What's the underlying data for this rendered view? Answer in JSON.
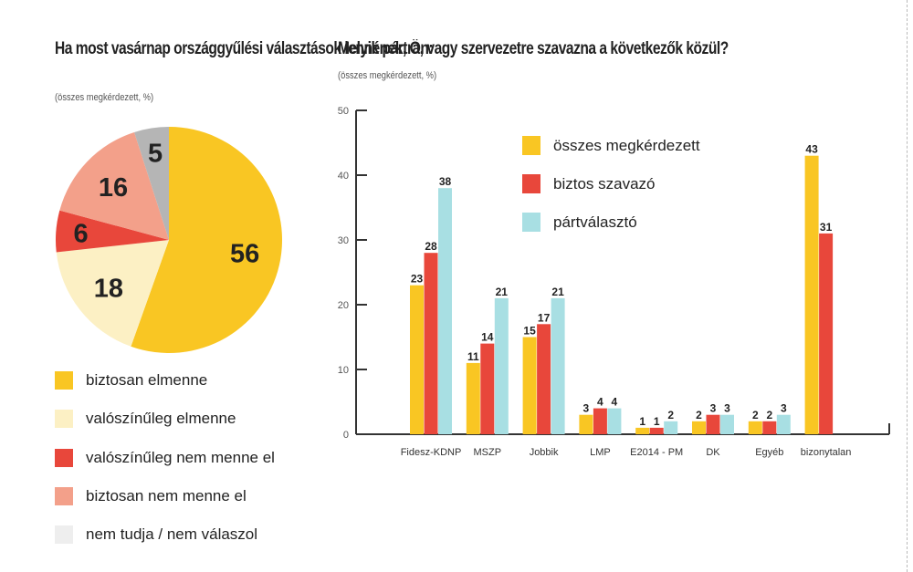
{
  "chart_data": [
    {
      "type": "pie",
      "title": "Ha most vasárnap országgyűlési választások lennének, Ön:",
      "subtitle": "(összes megkérdezett, %)",
      "labels": [
        "biztosan elmenne",
        "valószínűleg elmenne",
        "valószínűleg nem menne el",
        "biztosan nem menne el",
        "nem tudja / nem válaszol"
      ],
      "values": [
        56,
        18,
        6,
        16,
        5
      ],
      "colors": [
        "#f9c623",
        "#fcf0c4",
        "#e8473b",
        "#f3a08a",
        "#b5b5b5"
      ],
      "legend_colors": [
        "#f9c623",
        "#fcf0c4",
        "#e8473b",
        "#f3a08a",
        "#eeeeee"
      ]
    },
    {
      "type": "bar",
      "title": "Melyik pártra, vagy szervezetre szavazna a következők közül?",
      "subtitle": "(összes megkérdezett, %)",
      "categories": [
        "Fidesz-KDNP",
        "MSZP",
        "Jobbik",
        "LMP",
        "E2014 - PM",
        "DK",
        "Egyéb",
        "bizonytalan"
      ],
      "series": [
        {
          "name": "összes megkérdezett",
          "color": "#f9c623",
          "values": [
            23,
            11,
            15,
            3,
            1,
            2,
            2,
            43
          ]
        },
        {
          "name": "biztos szavazó",
          "color": "#e8473b",
          "values": [
            28,
            14,
            17,
            4,
            1,
            3,
            2,
            31
          ]
        },
        {
          "name": "pártválasztó",
          "color": "#a8dfe3",
          "values": [
            38,
            21,
            21,
            4,
            2,
            3,
            3,
            null
          ]
        }
      ],
      "yticks": [
        0,
        10,
        20,
        30,
        40,
        50
      ],
      "ylim": [
        0,
        50
      ],
      "legend": "top-center"
    }
  ]
}
